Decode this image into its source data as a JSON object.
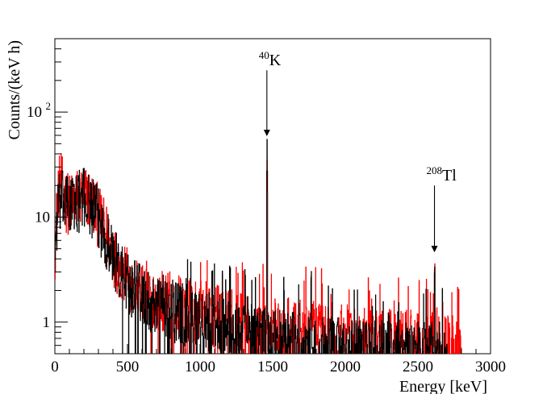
{
  "chart_data": {
    "type": "line",
    "title": "",
    "xlabel": "Energy [keV]",
    "ylabel": "Counts/(keV h)",
    "xlim": [
      0,
      3000
    ],
    "ylim": [
      0.5,
      500
    ],
    "y_scale": "log",
    "grid": false,
    "legend": "none",
    "x_ticks": [
      {
        "value": 0,
        "label": "0"
      },
      {
        "value": 500,
        "label": "500"
      },
      {
        "value": 1000,
        "label": "1000"
      },
      {
        "value": 1500,
        "label": "1500"
      },
      {
        "value": 2000,
        "label": "2000"
      },
      {
        "value": 2500,
        "label": "2500"
      },
      {
        "value": 3000,
        "label": "3000"
      }
    ],
    "y_ticks": [
      {
        "value": 1,
        "label": "1"
      },
      {
        "value": 10,
        "label": "10"
      },
      {
        "value": 100,
        "label": "10",
        "exponent": "2"
      }
    ],
    "series": [
      {
        "color": "#ff0000",
        "spectrum_points": [
          [
            0,
            5
          ],
          [
            20,
            18
          ],
          [
            40,
            22
          ],
          [
            60,
            16
          ],
          [
            80,
            14
          ],
          [
            100,
            13
          ],
          [
            150,
            15
          ],
          [
            200,
            16
          ],
          [
            250,
            14
          ],
          [
            300,
            10
          ],
          [
            350,
            7
          ],
          [
            400,
            4.5
          ],
          [
            450,
            3.2
          ],
          [
            500,
            2.6
          ],
          [
            600,
            2
          ],
          [
            700,
            1.7
          ],
          [
            800,
            1.5
          ],
          [
            900,
            1.35
          ],
          [
            1000,
            1.25
          ],
          [
            1100,
            1.15
          ],
          [
            1200,
            1.05
          ],
          [
            1300,
            0.95
          ],
          [
            1400,
            0.9
          ],
          [
            1500,
            0.85
          ],
          [
            1600,
            0.85
          ],
          [
            1700,
            0.8
          ],
          [
            1800,
            0.8
          ],
          [
            1900,
            0.78
          ],
          [
            2000,
            0.75
          ],
          [
            2100,
            0.72
          ],
          [
            2200,
            0.7
          ],
          [
            2300,
            0.68
          ],
          [
            2400,
            0.66
          ],
          [
            2500,
            0.64
          ],
          [
            2600,
            0.62
          ],
          [
            2700,
            0.6
          ],
          [
            2800,
            0.55
          ]
        ],
        "peaks": [
          {
            "energy": 1460,
            "counts": 35
          },
          {
            "energy": 1764,
            "counts": 3.5
          },
          {
            "energy": 2614,
            "counts": 4.5
          }
        ]
      },
      {
        "color": "#000000",
        "spectrum_points": [
          [
            0,
            5
          ],
          [
            20,
            12
          ],
          [
            40,
            14
          ],
          [
            60,
            14
          ],
          [
            80,
            13
          ],
          [
            100,
            13
          ],
          [
            150,
            14
          ],
          [
            200,
            15
          ],
          [
            250,
            13
          ],
          [
            300,
            9.5
          ],
          [
            350,
            6.5
          ],
          [
            400,
            4.2
          ],
          [
            450,
            3
          ],
          [
            500,
            2.4
          ],
          [
            600,
            1.8
          ],
          [
            700,
            1.5
          ],
          [
            800,
            1.3
          ],
          [
            900,
            1.15
          ],
          [
            1000,
            1.05
          ],
          [
            1100,
            0.95
          ],
          [
            1200,
            0.85
          ],
          [
            1300,
            0.78
          ],
          [
            1400,
            0.72
          ],
          [
            1500,
            0.66
          ],
          [
            1600,
            0.63
          ],
          [
            1700,
            0.6
          ],
          [
            1800,
            0.58
          ],
          [
            1900,
            0.56
          ],
          [
            2000,
            0.54
          ],
          [
            2100,
            0.52
          ],
          [
            2200,
            0.52
          ],
          [
            2300,
            0.51
          ],
          [
            2400,
            0.5
          ],
          [
            2500,
            0.5
          ],
          [
            2600,
            0.5
          ],
          [
            2700,
            0.5
          ]
        ],
        "peaks": [
          {
            "energy": 1460,
            "counts": 55
          },
          {
            "energy": 1764,
            "counts": 3.8
          },
          {
            "energy": 2614,
            "counts": 4.2
          }
        ]
      }
    ],
    "annotations": [
      {
        "id": "k40",
        "mass": "40",
        "symbol": "K",
        "energy": 1460,
        "arrow_from": 250,
        "arrow_to": 60
      },
      {
        "id": "tl208",
        "mass": "208",
        "symbol": "Tl",
        "energy": 2614,
        "arrow_from": 20,
        "arrow_to": 4.7
      }
    ]
  }
}
